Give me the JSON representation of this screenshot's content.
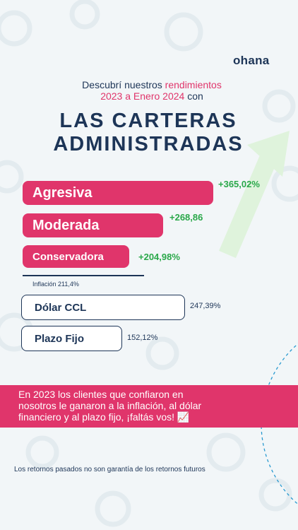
{
  "brand": "ohana",
  "intro": {
    "l1": "Descubrí nuestros ",
    "l1_hl": "rendimientos",
    "l2_hl": "2023 a Enero 2024",
    "l2": " con"
  },
  "headline": {
    "l1": "LAS CARTERAS",
    "l2": "ADMINISTRADAS"
  },
  "colors": {
    "accent": "#e0356b",
    "navy": "#1d3557",
    "positive": "#2aa84a",
    "background": "#f2f6f8"
  },
  "chart_data": {
    "type": "bar",
    "orientation": "horizontal",
    "categories": [
      "Agresiva",
      "Moderada",
      "Conservadora"
    ],
    "values": [
      365.02,
      268.86,
      204.98
    ],
    "value_labels": [
      "+365,02%",
      "+268,86",
      "+204,98%"
    ],
    "benchmarks": [
      {
        "name": "Inflación",
        "value": 211.4,
        "label": "Inflación 211,4%"
      },
      {
        "name": "Dólar CCL",
        "value": 247.39,
        "label": "247,39%"
      },
      {
        "name": "Plazo Fijo",
        "value": 152.12,
        "label": "152,12%"
      }
    ]
  },
  "banner": {
    "l1": "En 2023 los clientes que confiaron en",
    "l2": "nosotros le ganaron a la inflación, al dólar",
    "l3": "financiero y al plazo fijo, ¡faltás vos! 📈"
  },
  "footer": "Los retornos pasados no son garantía de los retornos futuros"
}
